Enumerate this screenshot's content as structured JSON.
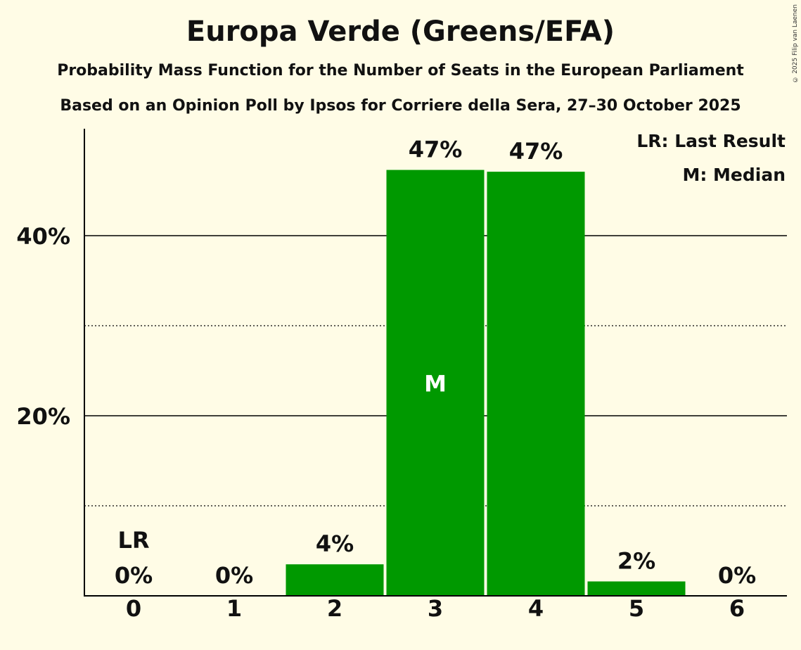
{
  "header": {
    "title": "Europa Verde (Greens/EFA)",
    "subtitle": "Probability Mass Function for the Number of Seats in the European Parliament",
    "subtitle2": "Based on an Opinion Poll by Ipsos for Corriere della Sera, 27–30 October 2025",
    "copyright": "© 2025 Filip van Laenen"
  },
  "colors": {
    "bar": "#009900",
    "background": "#fffce6",
    "text": "#111111"
  },
  "chart_data": {
    "type": "bar",
    "categories": [
      "0",
      "1",
      "2",
      "3",
      "4",
      "5",
      "6"
    ],
    "values": [
      0,
      0,
      3.5,
      47.3,
      47.1,
      1.6,
      0
    ],
    "value_labels": [
      "0%",
      "0%",
      "4%",
      "47%",
      "47%",
      "2%",
      "0%"
    ],
    "ylim": [
      0,
      52
    ],
    "yticks": [
      {
        "value": 10,
        "label": "",
        "style": "dotted"
      },
      {
        "value": 20,
        "label": "20%",
        "style": "solid"
      },
      {
        "value": 30,
        "label": "",
        "style": "dotted"
      },
      {
        "value": 40,
        "label": "40%",
        "style": "solid"
      }
    ],
    "last_result_index": 0,
    "last_result_marker": "LR",
    "median_index": 3,
    "median_marker": "M",
    "legend": [
      "LR: Last Result",
      "M: Median"
    ],
    "legend_position": "top-right"
  }
}
